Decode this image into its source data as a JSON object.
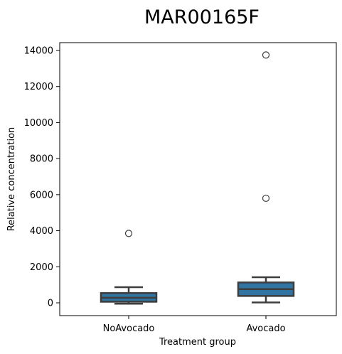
{
  "chart_data": {
    "type": "box",
    "title": "MAR00165F",
    "xlabel": "Treatment group",
    "ylabel": "Relative concentration",
    "ylim": [
      -700,
      14400
    ],
    "yticks": [
      0,
      2000,
      4000,
      6000,
      8000,
      10000,
      12000,
      14000
    ],
    "categories": [
      "NoAvocado",
      "Avocado"
    ],
    "box_color": "#3274a1",
    "line_color": "#3d3d3d",
    "grid": false,
    "boxes": [
      {
        "name": "NoAvocado",
        "whisker_low": -50,
        "q1": 60,
        "median": 280,
        "q3": 540,
        "whisker_high": 870,
        "outliers": [
          3850
        ]
      },
      {
        "name": "Avocado",
        "whisker_low": 20,
        "q1": 380,
        "median": 760,
        "q3": 1130,
        "whisker_high": 1420,
        "outliers": [
          5800,
          13750
        ]
      }
    ]
  }
}
